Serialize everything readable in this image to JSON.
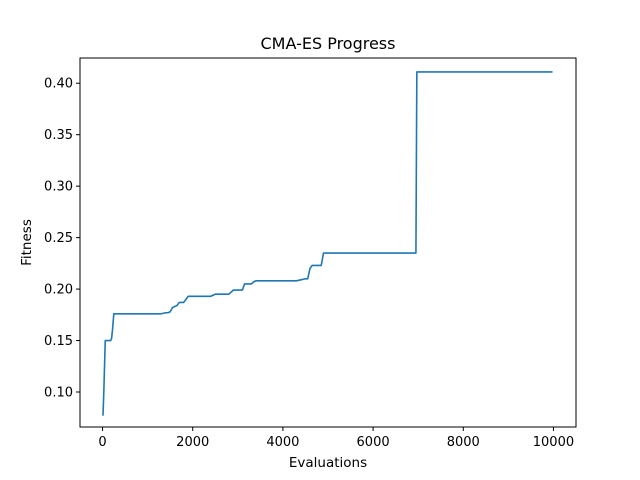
{
  "chart_data": {
    "type": "line",
    "title": "CMA-ES Progress",
    "xlabel": "Evaluations",
    "ylabel": "Fitness",
    "xlim": [
      -500,
      10500
    ],
    "ylim": [
      0.066,
      0.4245
    ],
    "xticks": [
      0,
      2000,
      4000,
      6000,
      8000,
      10000
    ],
    "yticks": [
      0.1,
      0.15,
      0.2,
      0.25,
      0.3,
      0.35,
      0.4
    ],
    "grid": false,
    "legend": "none",
    "series": [
      {
        "color": "#1f77b4",
        "x": [
          10,
          30,
          60,
          80,
          100,
          120,
          150,
          180,
          200,
          220,
          250,
          300,
          600,
          900,
          1100,
          1300,
          1400,
          1450,
          1500,
          1550,
          1600,
          1650,
          1700,
          1800,
          1900,
          2100,
          2300,
          2400,
          2500,
          2600,
          2700,
          2800,
          2900,
          3000,
          3100,
          3150,
          3200,
          3300,
          3350,
          3400,
          3500,
          3700,
          3900,
          4100,
          4300,
          4400,
          4500,
          4550,
          4600,
          4650,
          4800,
          4850,
          4900,
          5200,
          5600,
          6000,
          6400,
          6800,
          6950,
          6970,
          7000,
          7500,
          8000,
          8500,
          9000,
          9500,
          9980
        ],
        "y": [
          0.077,
          0.103,
          0.15,
          0.15,
          0.15,
          0.15,
          0.15,
          0.15,
          0.152,
          0.16,
          0.176,
          0.176,
          0.176,
          0.176,
          0.176,
          0.176,
          0.177,
          0.177,
          0.178,
          0.182,
          0.183,
          0.184,
          0.187,
          0.187,
          0.193,
          0.193,
          0.193,
          0.193,
          0.195,
          0.195,
          0.195,
          0.195,
          0.199,
          0.199,
          0.199,
          0.205,
          0.205,
          0.205,
          0.207,
          0.208,
          0.208,
          0.208,
          0.208,
          0.208,
          0.208,
          0.209,
          0.21,
          0.21,
          0.22,
          0.223,
          0.223,
          0.223,
          0.235,
          0.235,
          0.235,
          0.235,
          0.235,
          0.235,
          0.235,
          0.411,
          0.411,
          0.411,
          0.411,
          0.411,
          0.411,
          0.411,
          0.411
        ]
      }
    ]
  }
}
